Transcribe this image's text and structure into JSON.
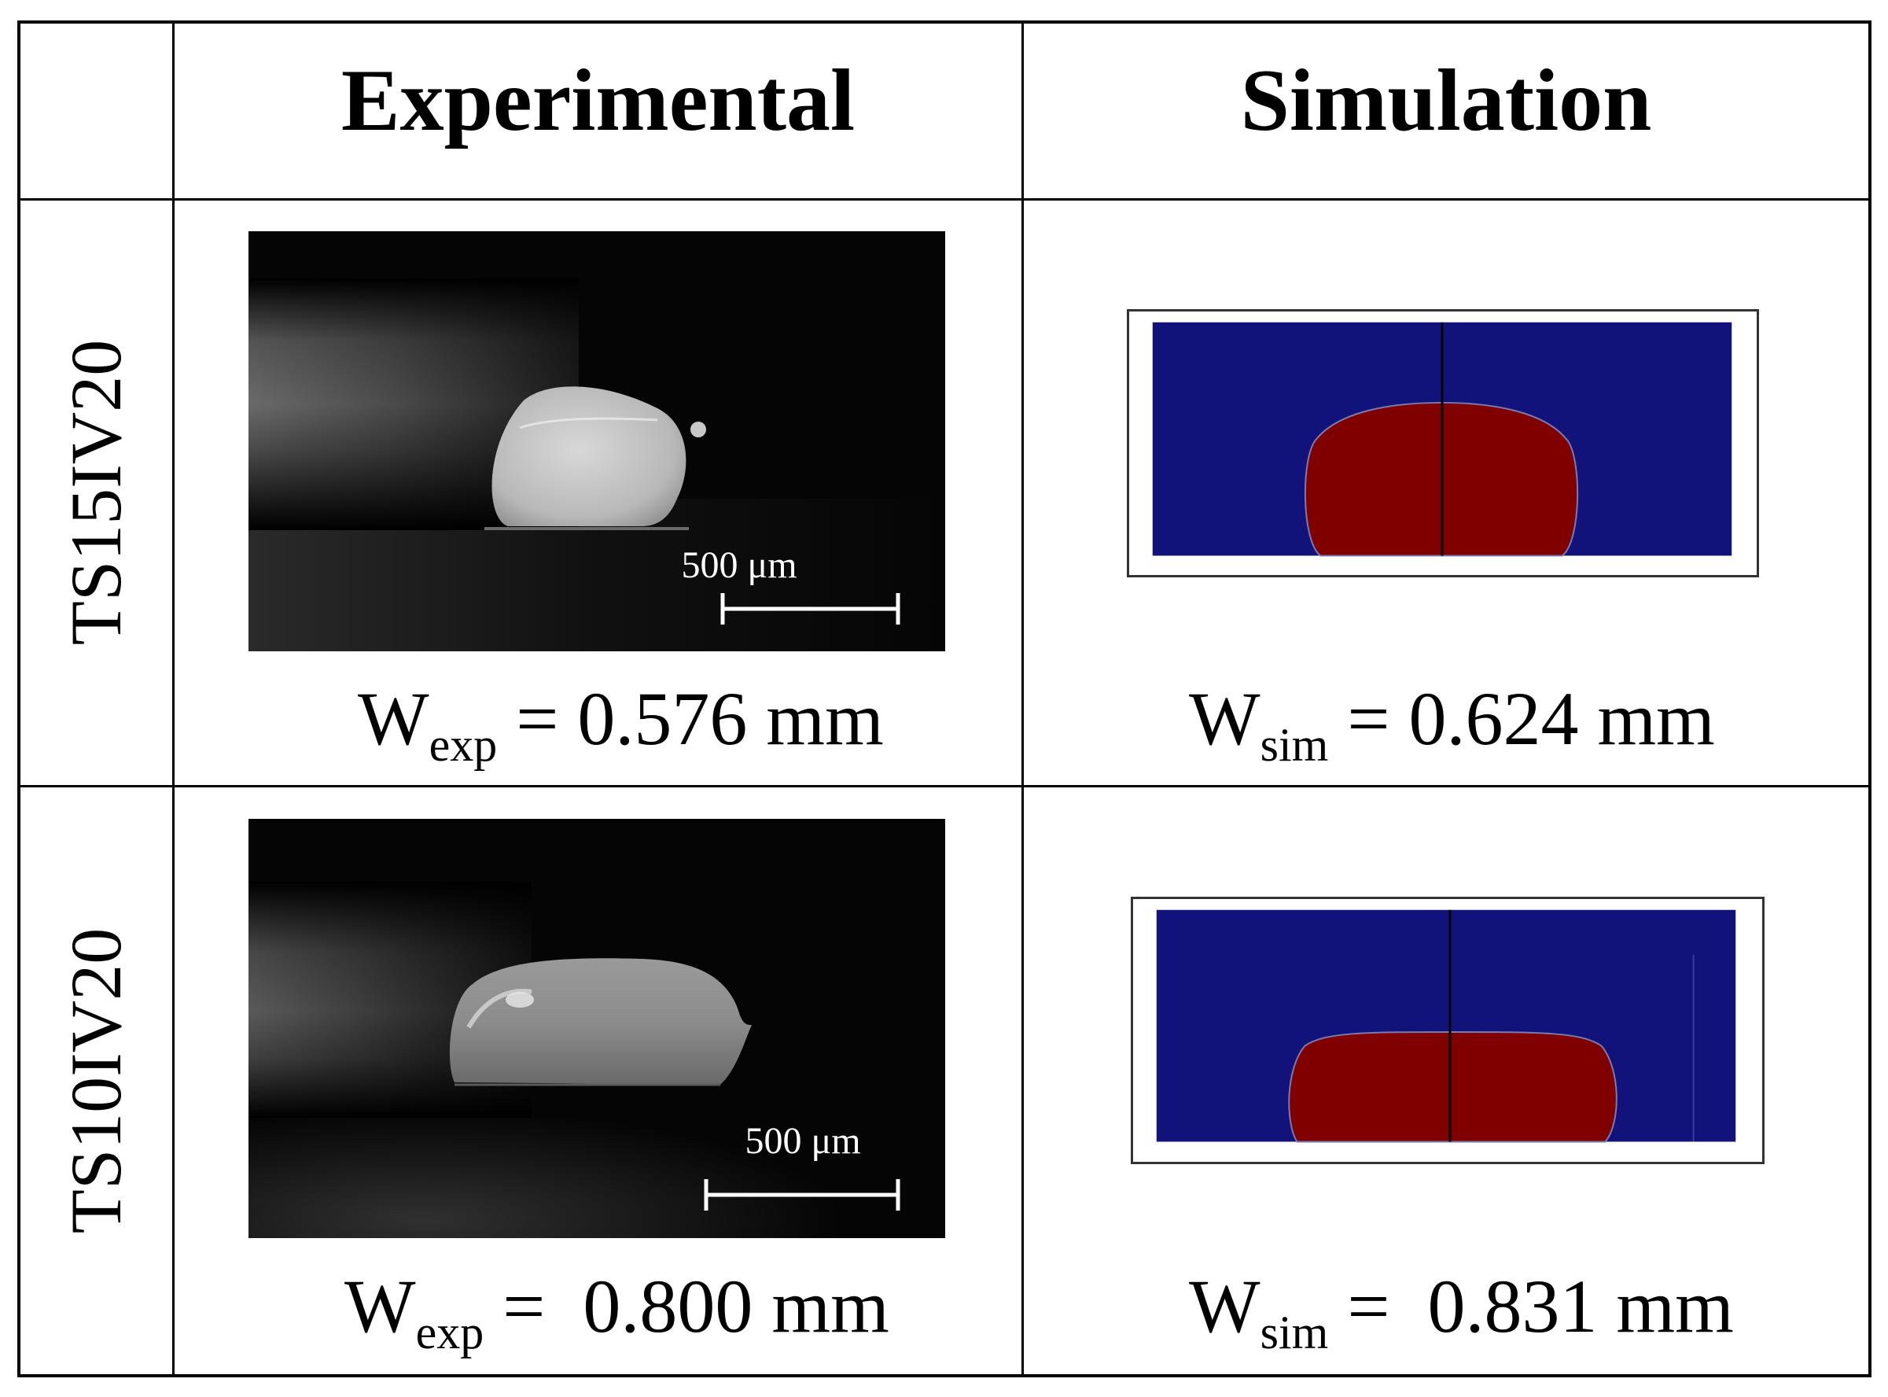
{
  "table": {
    "headers": [
      "Experimental",
      "Simulation"
    ],
    "rows": [
      {
        "label": "TS15IV20",
        "experimental": {
          "scale_bar": "500 μm",
          "symbol": "W",
          "subscript": "exp",
          "value": " = 0.576 mm"
        },
        "simulation": {
          "symbol": "W",
          "subscript": "sim",
          "value": " = 0.624 mm"
        }
      },
      {
        "label": "TS10IV20",
        "experimental": {
          "scale_bar": "500 μm",
          "symbol": "W",
          "subscript": "exp",
          "value": " =  0.800 mm"
        },
        "simulation": {
          "symbol": "W",
          "subscript": "sim",
          "value": " =  0.831 mm"
        }
      }
    ]
  },
  "colors": {
    "simulation_background": "#12137a",
    "simulation_melt_pool": "#800000",
    "grid": "#000000"
  }
}
